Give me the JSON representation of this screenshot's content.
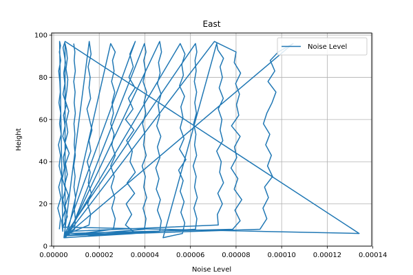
{
  "chart_data": {
    "type": "line",
    "title": "East",
    "xlabel": "Noise Level",
    "ylabel": "Height",
    "xlim": [
      -9e-07,
      0.0001395
    ],
    "ylim": [
      0,
      101
    ],
    "xticks": [
      0,
      2e-05,
      4e-05,
      6e-05,
      8e-05,
      0.0001,
      0.00012,
      0.00014
    ],
    "xtick_labels": [
      "0.00000",
      "0.00002",
      "0.00004",
      "0.00006",
      "0.00008",
      "0.00010",
      "0.00012",
      "0.00014"
    ],
    "yticks": [
      0,
      20,
      40,
      60,
      80,
      100
    ],
    "ytick_labels": [
      "0",
      "20",
      "40",
      "60",
      "80",
      "100"
    ],
    "grid": true,
    "legend_position": "upper right",
    "series": [
      {
        "name": "Noise Level",
        "color": "#1f77b4",
        "profiles": [
          {
            "x": [
              2.5e-06,
              3e-06,
              1.8e-06,
              3.2e-06,
              2.2e-06,
              3.5e-06,
              2.4e-06,
              3e-06,
              2.1e-06,
              3.3e-06,
              2.6e-06,
              3.1e-06,
              2.3e-06,
              2.9e-06,
              2.7e-06,
              2.2e-06,
              3.1e-06,
              2.5e-06,
              3e-06,
              2.6e-06
            ],
            "y": [
              8,
              13,
              18,
              23,
              28,
              33,
              38,
              43,
              48,
              53,
              58,
              63,
              68,
              73,
              78,
              83,
              88,
              92,
              95,
              97
            ]
          },
          {
            "x": [
              4e-06,
              3.5e-06,
              5e-06,
              4e-06,
              5.2e-06,
              3.8e-06,
              4.7e-06,
              4.2e-06,
              5.5e-06,
              4e-06,
              5e-06,
              4.3e-06,
              5.6e-06,
              4.1e-06,
              4.9e-06,
              4.4e-06,
              5.2e-06,
              4.6e-06,
              4.1e-06,
              5e-06
            ],
            "y": [
              7,
              12,
              17,
              22,
              27,
              32,
              37,
              42,
              47,
              52,
              57,
              62,
              67,
              72,
              77,
              82,
              87,
              91,
              94,
              97
            ]
          },
          {
            "x": [
              0.000134,
              4e-06,
              6e-06,
              5e-06,
              6.5e-06,
              4.8e-06,
              6e-06,
              5.2e-06,
              6.8e-06,
              5e-06,
              6.2e-06,
              5.5e-06,
              6.6e-06,
              5.1e-06,
              5.8e-06,
              6.2e-06,
              5.4e-06,
              6e-06,
              5.6e-06,
              5e-06
            ],
            "y": [
              6,
              9,
              14,
              19,
              24,
              29,
              34,
              39,
              44,
              49,
              54,
              59,
              64,
              69,
              74,
              79,
              84,
              89,
              93,
              96
            ]
          },
          {
            "x": [
              5e-06,
              6.55e-06,
              1.55e-05,
              1.62e-05,
              1.49e-05,
              1.65e-05,
              1.52e-05,
              1.6e-05,
              1.47e-05,
              1.63e-05,
              1.55e-05,
              1.68e-05,
              1.57e-05,
              1.46e-05,
              1.62e-05,
              1.55e-05,
              1.6e-05,
              1.51e-05,
              1.64e-05,
              1.56e-05
            ],
            "y": [
              4,
              6,
              10,
              15,
              20,
              25,
              30,
              35,
              40,
              45,
              50,
              55,
              60,
              65,
              70,
              75,
              80,
              85,
              91,
              97
            ]
          },
          {
            "x": [
              4.5e-06,
              3.6e-05,
              3.15e-05,
              3.42e-05,
              3.18e-05,
              3.55e-05,
              3.22e-05,
              3.58e-05,
              3.35e-05,
              3.45e-05,
              3.2e-05,
              3.52e-05,
              3.15e-05,
              3.48e-05,
              3.28e-05,
              3.57e-05,
              3.3e-05,
              3.49e-05,
              3.34e-05,
              3.58e-05
            ],
            "y": [
              4,
              6,
              10,
              15,
              20,
              25,
              30,
              35,
              40,
              45,
              50,
              55,
              60,
              65,
              70,
              75,
              80,
              85,
              91,
              97
            ]
          },
          {
            "x": [
              5.2e-06,
              7.85e-05,
              8.18e-05,
              7.95e-05,
              8.25e-05,
              7.92e-05,
              8.08e-05,
              7.78e-05,
              8.03e-05,
              7.93e-05,
              8.18e-05,
              7.8e-05,
              8.12e-05,
              8.02e-05,
              8.15e-05,
              7.98e-05,
              8.2e-05,
              7.92e-05,
              8e-05,
              7.05e-05
            ],
            "y": [
              6,
              8,
              12,
              17,
              22,
              27,
              32,
              37,
              42,
              47,
              52,
              57,
              62,
              67,
              72,
              77,
              82,
              87,
              92,
              97
            ]
          },
          {
            "x": [
              7e-06,
              7.22e-05,
              7.18e-05,
              7.4e-05,
              7.2e-05,
              7.45e-05,
              7.28e-05,
              7.35e-05,
              7.15e-05,
              7.42e-05,
              7.3e-05,
              7.38e-05,
              7.22e-05,
              7.44e-05,
              7.26e-05,
              7.4e-05,
              7.3e-05,
              7.45e-05,
              7.2e-05,
              7.15e-05
            ],
            "y": [
              7,
              10,
              15,
              20,
              25,
              30,
              35,
              40,
              45,
              50,
              55,
              60,
              65,
              70,
              75,
              80,
              85,
              89,
              93,
              96
            ]
          },
          {
            "x": [
              4.8e-05,
              5.65e-05,
              5.75e-05,
              5.58e-05,
              5.72e-05,
              5.55e-05,
              5.68e-05,
              5.48e-05,
              5.8e-05,
              5.52e-05,
              5.72e-05,
              5.55e-05,
              5.67e-05,
              5.58e-05,
              5.74e-05,
              5.52e-05,
              5.69e-05,
              5.62e-05,
              5.76e-05,
              5.55e-05
            ],
            "y": [
              4,
              6,
              11,
              16,
              21,
              26,
              31,
              36,
              41,
              46,
              51,
              56,
              61,
              66,
              71,
              76,
              81,
              86,
              91,
              96
            ]
          },
          {
            "x": [
              5e-06,
              4.65e-05,
              4.72e-05,
              4.55e-05,
              4.68e-05,
              4.5e-05,
              4.62e-05,
              4.48e-05,
              4.66e-05,
              4.55e-05,
              4.7e-05,
              4.52e-05,
              4.65e-05,
              4.58e-05,
              4.71e-05,
              4.55e-05,
              4.67e-05,
              4.6e-05,
              4.73e-05,
              4.65e-05
            ],
            "y": [
              4,
              7,
              12,
              17,
              22,
              27,
              32,
              37,
              42,
              47,
              52,
              57,
              62,
              67,
              72,
              77,
              82,
              87,
              92,
              97
            ]
          },
          {
            "x": [
              6.2e-06,
              9.05e-05,
              9.35e-05,
              9.18e-05,
              9.42e-05,
              9.25e-05,
              9.6e-05,
              9.38e-05,
              9.55e-05,
              9.3e-05,
              9.48e-05,
              9.2e-05,
              9.35e-05,
              9.58e-05,
              9.75e-05,
              9.4e-05,
              9.7e-05,
              9.5e-05,
              9.85e-05,
              0.000105
            ],
            "y": [
              5,
              8,
              13,
              18,
              23,
              28,
              33,
              38,
              43,
              48,
              53,
              58,
              63,
              68,
              73,
              78,
              83,
              88,
              92,
              96
            ]
          },
          {
            "x": [
              5.4e-06,
              2.62e-05,
              2.7e-05,
              2.55e-05,
              2.68e-05,
              2.52e-05,
              2.66e-05,
              2.5e-05,
              2.7e-05,
              2.55e-05,
              2.65e-05,
              2.5e-05,
              2.62e-05,
              2.56e-05,
              2.68e-05,
              2.54e-05,
              2.65e-05,
              2.58e-05,
              2.7e-05,
              2.5e-05
            ],
            "y": [
              5,
              8,
              13,
              18,
              23,
              28,
              33,
              38,
              43,
              48,
              53,
              58,
              63,
              68,
              73,
              78,
              83,
              88,
              92,
              96
            ]
          },
          {
            "x": [
              5.8e-06,
              3.98e-05,
              4.05e-05,
              3.92e-05,
              4.08e-05,
              3.95e-05,
              4.02e-05,
              3.88e-05,
              4.06e-05,
              3.94e-05,
              4e-05,
              3.9e-05,
              4.04e-05,
              3.96e-05,
              4.08e-05,
              3.92e-05,
              4.03e-05,
              3.95e-05,
              4.05e-05,
              3.98e-05
            ],
            "y": [
              5,
              8,
              13,
              18,
              23,
              28,
              33,
              38,
              43,
              48,
              53,
              58,
              63,
              68,
              73,
              78,
              83,
              88,
              92,
              96
            ]
          },
          {
            "x": [
              6.6e-06,
              6.22e-05,
              6.28e-05,
              6.15e-05,
              6.3e-05,
              6.18e-05,
              6.25e-05,
              6.12e-05,
              6.27e-05,
              6.18e-05,
              6.24e-05,
              6.14e-05,
              6.26e-05,
              6.19e-05,
              6.27e-05,
              6.17e-05,
              6.25e-05,
              6.2e-05,
              6.28e-05,
              6.22e-05
            ],
            "y": [
              5,
              8,
              13,
              18,
              23,
              28,
              33,
              38,
              43,
              48,
              53,
              58,
              63,
              68,
              73,
              78,
              83,
              88,
              92,
              96
            ]
          },
          {
            "x": [
              4.8e-06,
              9.2e-06,
              9.5e-06,
              9e-06,
              9.6e-06,
              8.9e-06,
              9.4e-06,
              8.8e-06,
              9.5e-06,
              9e-06,
              9.3e-06,
              8.9e-06,
              9.5e-06,
              9e-06,
              9.4e-06,
              8.8e-06,
              9.5e-06,
              9e-06,
              9.3e-06,
              8.8e-06
            ],
            "y": [
              5,
              8,
              13,
              18,
              23,
              28,
              33,
              38,
              43,
              48,
              53,
              58,
              63,
              68,
              73,
              78,
              83,
              88,
              92,
              96
            ]
          }
        ]
      }
    ]
  }
}
